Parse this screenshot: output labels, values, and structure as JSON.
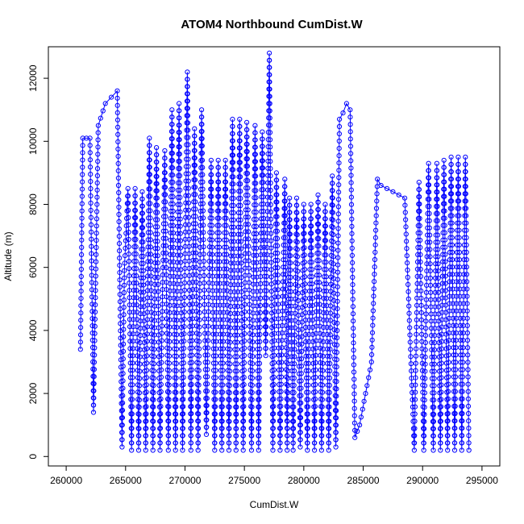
{
  "chart_data": {
    "type": "scatter",
    "title": "ATOM4 Northbound CumDist.W",
    "xlabel": "CumDist.W",
    "ylabel": "Altitude (m)",
    "xlim": [
      258500,
      296500
    ],
    "ylim": [
      -300,
      13000
    ],
    "x_ticks": [
      260000,
      265000,
      270000,
      275000,
      280000,
      285000,
      290000,
      295000
    ],
    "y_ticks": [
      0,
      2000,
      4000,
      6000,
      8000,
      10000,
      12000
    ],
    "series_color": "#0000ff",
    "series": [
      {
        "style": "points-and-lines",
        "x": [
          261200,
          261400,
          261700,
          262000,
          262300,
          262700,
          263300,
          263800,
          264300,
          264700,
          264900,
          265200,
          265500,
          265800,
          266100,
          266400,
          266700,
          267000,
          267300,
          267600,
          267900,
          268300,
          268600,
          268900,
          269200,
          269500,
          269800,
          270200,
          270500,
          270800,
          271100,
          271400,
          271800,
          272200,
          272500,
          272800,
          273100,
          273400,
          273700,
          274000,
          274300,
          274600,
          274900,
          275200,
          275600,
          275900,
          276200,
          276500,
          276800,
          277100,
          277400,
          277700,
          278000,
          278400,
          278600,
          278800,
          279100,
          279400,
          279700,
          280000,
          280300,
          280600,
          280900,
          281200,
          281500,
          281800,
          282100,
          282400,
          282700,
          283000,
          283300,
          283600,
          283900,
          284300,
          284700,
          285200,
          285700,
          286200,
          286500,
          287500,
          288500,
          289300,
          289700,
          290100,
          290500,
          290900,
          291200,
          291500,
          291800,
          292100,
          292400,
          292700,
          293000,
          293300,
          293600,
          293900
        ],
        "y": [
          3400,
          10100,
          10100,
          10100,
          1400,
          10500,
          11200,
          11400,
          11600,
          300,
          5900,
          8500,
          200,
          8500,
          200,
          8400,
          200,
          10100,
          200,
          9800,
          200,
          9700,
          200,
          11000,
          200,
          11200,
          200,
          12200,
          200,
          10400,
          200,
          11000,
          700,
          9400,
          200,
          9400,
          200,
          9400,
          200,
          10700,
          200,
          10700,
          200,
          10600,
          200,
          10500,
          200,
          10300,
          3200,
          12800,
          200,
          9000,
          200,
          8800,
          200,
          8200,
          200,
          8200,
          300,
          8000,
          200,
          8000,
          200,
          8300,
          200,
          8000,
          200,
          8900,
          300,
          10700,
          10900,
          11200,
          11000,
          600,
          1000,
          2000,
          3000,
          8800,
          8600,
          8400,
          8200,
          200,
          8700,
          200,
          9300,
          200,
          9300,
          200,
          9400,
          200,
          9500,
          200,
          9500,
          200,
          9500,
          200
        ]
      }
    ]
  }
}
